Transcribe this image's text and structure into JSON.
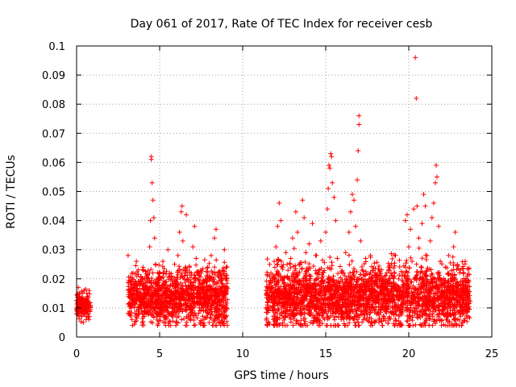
{
  "chart_data": {
    "type": "scatter",
    "title": "Day 061 of 2017, Rate Of TEC Index for receiver cesb",
    "xlabel": "GPS time / hours",
    "ylabel": "ROTI / TECUs",
    "xlim": [
      0,
      25
    ],
    "ylim": [
      0,
      0.1
    ],
    "x_ticks": [
      0,
      5,
      10,
      15,
      20,
      25
    ],
    "y_ticks": [
      0,
      0.01,
      0.02,
      0.03,
      0.04,
      0.05,
      0.06,
      0.07,
      0.08,
      0.09,
      0.1
    ],
    "x_tick_labels": [
      "0",
      "5",
      "10",
      "15",
      "20",
      "25"
    ],
    "y_tick_labels": [
      "0",
      "0.01",
      "0.02",
      "0.03",
      "0.04",
      "0.05",
      "0.06",
      "0.07",
      "0.08",
      "0.09",
      "0.1"
    ],
    "grid": true,
    "marker": "+",
    "colors": {
      "points": "#ff0000",
      "grid": "#a0a0a0",
      "axes": "#000000"
    },
    "series": [
      {
        "points": [
          [
            0.0,
            0.008
          ],
          [
            0.05,
            0.012
          ],
          [
            0.1,
            0.017
          ],
          [
            0.15,
            0.009
          ],
          [
            0.2,
            0.015
          ],
          [
            0.25,
            0.011
          ],
          [
            0.3,
            0.007
          ],
          [
            0.35,
            0.013
          ],
          [
            0.4,
            0.01
          ],
          [
            0.45,
            0.016
          ],
          [
            0.5,
            0.009
          ],
          [
            0.55,
            0.012
          ],
          [
            0.6,
            0.007
          ],
          [
            0.65,
            0.014
          ],
          [
            0.7,
            0.011
          ],
          [
            0.75,
            0.016
          ],
          [
            0.8,
            0.009
          ],
          [
            3.1,
            0.028
          ],
          [
            3.2,
            0.016
          ],
          [
            3.3,
            0.01
          ],
          [
            3.4,
            0.022
          ],
          [
            3.5,
            0.013
          ],
          [
            3.6,
            0.026
          ],
          [
            3.7,
            0.009
          ],
          [
            3.8,
            0.019
          ],
          [
            3.9,
            0.012
          ],
          [
            4.0,
            0.024
          ],
          [
            4.1,
            0.01
          ],
          [
            4.2,
            0.021
          ],
          [
            4.3,
            0.015
          ],
          [
            4.4,
            0.031
          ],
          [
            4.45,
            0.04
          ],
          [
            4.5,
            0.062
          ],
          [
            4.5,
            0.061
          ],
          [
            4.55,
            0.053
          ],
          [
            4.6,
            0.047
          ],
          [
            4.65,
            0.041
          ],
          [
            4.7,
            0.034
          ],
          [
            4.75,
            0.025
          ],
          [
            4.8,
            0.018
          ],
          [
            4.85,
            0.011
          ],
          [
            4.9,
            0.016
          ],
          [
            5.0,
            0.022
          ],
          [
            5.1,
            0.013
          ],
          [
            5.2,
            0.026
          ],
          [
            5.3,
            0.009
          ],
          [
            5.4,
            0.019
          ],
          [
            5.5,
            0.03
          ],
          [
            5.6,
            0.014
          ],
          [
            5.7,
            0.021
          ],
          [
            5.8,
            0.01
          ],
          [
            5.9,
            0.025
          ],
          [
            6.0,
            0.017
          ],
          [
            6.1,
            0.028
          ],
          [
            6.2,
            0.036
          ],
          [
            6.3,
            0.043
          ],
          [
            6.35,
            0.045
          ],
          [
            6.4,
            0.033
          ],
          [
            6.5,
            0.021
          ],
          [
            6.6,
            0.042
          ],
          [
            6.7,
            0.013
          ],
          [
            6.8,
            0.024
          ],
          [
            6.9,
            0.01
          ],
          [
            7.0,
            0.031
          ],
          [
            7.1,
            0.038
          ],
          [
            7.2,
            0.027
          ],
          [
            7.3,
            0.017
          ],
          [
            7.4,
            0.011
          ],
          [
            7.5,
            0.022
          ],
          [
            7.6,
            0.014
          ],
          [
            7.7,
            0.019
          ],
          [
            7.8,
            0.009
          ],
          [
            7.9,
            0.024
          ],
          [
            8.0,
            0.016
          ],
          [
            8.1,
            0.028
          ],
          [
            8.2,
            0.012
          ],
          [
            8.3,
            0.034
          ],
          [
            8.4,
            0.037
          ],
          [
            8.5,
            0.021
          ],
          [
            8.6,
            0.013
          ],
          [
            8.7,
            0.008
          ],
          [
            8.8,
            0.018
          ],
          [
            8.9,
            0.03
          ],
          [
            9.0,
            0.011
          ],
          [
            11.4,
            0.01
          ],
          [
            11.5,
            0.017
          ],
          [
            11.6,
            0.013
          ],
          [
            11.7,
            0.022
          ],
          [
            11.8,
            0.009
          ],
          [
            11.9,
            0.026
          ],
          [
            12.0,
            0.031
          ],
          [
            12.1,
            0.038
          ],
          [
            12.2,
            0.046
          ],
          [
            12.3,
            0.04
          ],
          [
            12.4,
            0.024
          ],
          [
            12.5,
            0.015
          ],
          [
            12.6,
            0.029
          ],
          [
            12.7,
            0.011
          ],
          [
            12.8,
            0.02
          ],
          [
            12.9,
            0.027
          ],
          [
            13.0,
            0.034
          ],
          [
            13.1,
            0.018
          ],
          [
            13.2,
            0.043
          ],
          [
            13.3,
            0.036
          ],
          [
            13.4,
            0.025
          ],
          [
            13.5,
            0.013
          ],
          [
            13.6,
            0.047
          ],
          [
            13.7,
            0.041
          ],
          [
            13.8,
            0.029
          ],
          [
            13.9,
            0.017
          ],
          [
            14.0,
            0.032
          ],
          [
            14.1,
            0.021
          ],
          [
            14.2,
            0.039
          ],
          [
            14.3,
            0.014
          ],
          [
            14.4,
            0.028
          ],
          [
            14.5,
            0.011
          ],
          [
            14.6,
            0.023
          ],
          [
            14.7,
            0.033
          ],
          [
            14.8,
            0.019
          ],
          [
            14.9,
            0.013
          ],
          [
            15.0,
            0.036
          ],
          [
            15.1,
            0.044
          ],
          [
            15.15,
            0.051
          ],
          [
            15.2,
            0.059
          ],
          [
            15.25,
            0.058
          ],
          [
            15.3,
            0.063
          ],
          [
            15.35,
            0.062
          ],
          [
            15.4,
            0.053
          ],
          [
            15.5,
            0.048
          ],
          [
            15.6,
            0.04
          ],
          [
            15.7,
            0.027
          ],
          [
            15.8,
            0.016
          ],
          [
            15.9,
            0.01
          ],
          [
            16.0,
            0.022
          ],
          [
            16.1,
            0.014
          ],
          [
            16.2,
            0.029
          ],
          [
            16.3,
            0.019
          ],
          [
            16.4,
            0.036
          ],
          [
            16.5,
            0.043
          ],
          [
            16.6,
            0.049
          ],
          [
            16.7,
            0.047
          ],
          [
            16.8,
            0.038
          ],
          [
            16.9,
            0.054
          ],
          [
            16.95,
            0.064
          ],
          [
            17.0,
            0.073
          ],
          [
            17.0,
            0.076
          ],
          [
            17.1,
            0.033
          ],
          [
            17.2,
            0.023
          ],
          [
            17.3,
            0.016
          ],
          [
            17.4,
            0.027
          ],
          [
            17.5,
            0.012
          ],
          [
            17.6,
            0.02
          ],
          [
            17.7,
            0.028
          ],
          [
            17.8,
            0.018
          ],
          [
            17.9,
            0.01
          ],
          [
            18.0,
            0.021
          ],
          [
            18.2,
            0.013
          ],
          [
            18.4,
            0.018
          ],
          [
            18.6,
            0.01
          ],
          [
            18.8,
            0.024
          ],
          [
            19.0,
            0.016
          ],
          [
            19.2,
            0.028
          ],
          [
            19.4,
            0.013
          ],
          [
            19.6,
            0.021
          ],
          [
            19.8,
            0.04
          ],
          [
            19.9,
            0.042
          ],
          [
            20.0,
            0.031
          ],
          [
            20.1,
            0.037
          ],
          [
            20.2,
            0.026
          ],
          [
            20.3,
            0.044
          ],
          [
            20.4,
            0.096
          ],
          [
            20.45,
            0.082
          ],
          [
            20.5,
            0.045
          ],
          [
            20.6,
            0.034
          ],
          [
            20.7,
            0.022
          ],
          [
            20.8,
            0.039
          ],
          [
            20.9,
            0.049
          ],
          [
            21.0,
            0.045
          ],
          [
            21.1,
            0.028
          ],
          [
            21.2,
            0.017
          ],
          [
            21.3,
            0.033
          ],
          [
            21.4,
            0.041
          ],
          [
            21.5,
            0.046
          ],
          [
            21.6,
            0.053
          ],
          [
            21.65,
            0.059
          ],
          [
            21.7,
            0.055
          ],
          [
            21.8,
            0.038
          ],
          [
            21.9,
            0.026
          ],
          [
            22.0,
            0.018
          ],
          [
            22.1,
            0.011
          ],
          [
            22.2,
            0.024
          ],
          [
            22.3,
            0.015
          ],
          [
            22.4,
            0.028
          ],
          [
            22.5,
            0.011
          ],
          [
            22.6,
            0.02
          ],
          [
            22.7,
            0.031
          ],
          [
            22.8,
            0.036
          ],
          [
            22.9,
            0.019
          ],
          [
            23.0,
            0.013
          ],
          [
            23.1,
            0.023
          ],
          [
            23.2,
            0.009
          ],
          [
            23.3,
            0.018
          ],
          [
            23.4,
            0.026
          ],
          [
            23.5,
            0.01
          ],
          [
            23.6,
            0.015
          ]
        ]
      }
    ],
    "clusters": [
      {
        "x_range": [
          0.0,
          0.85
        ],
        "y_range": [
          0.005,
          0.018
        ],
        "center": 0.011,
        "count": 150
      },
      {
        "x_range": [
          3.1,
          9.1
        ],
        "y_range": [
          0.004,
          0.03
        ],
        "center": 0.014,
        "count": 1300
      },
      {
        "x_range": [
          11.4,
          23.7
        ],
        "y_range": [
          0.004,
          0.032
        ],
        "center": 0.014,
        "count": 2700
      }
    ]
  }
}
